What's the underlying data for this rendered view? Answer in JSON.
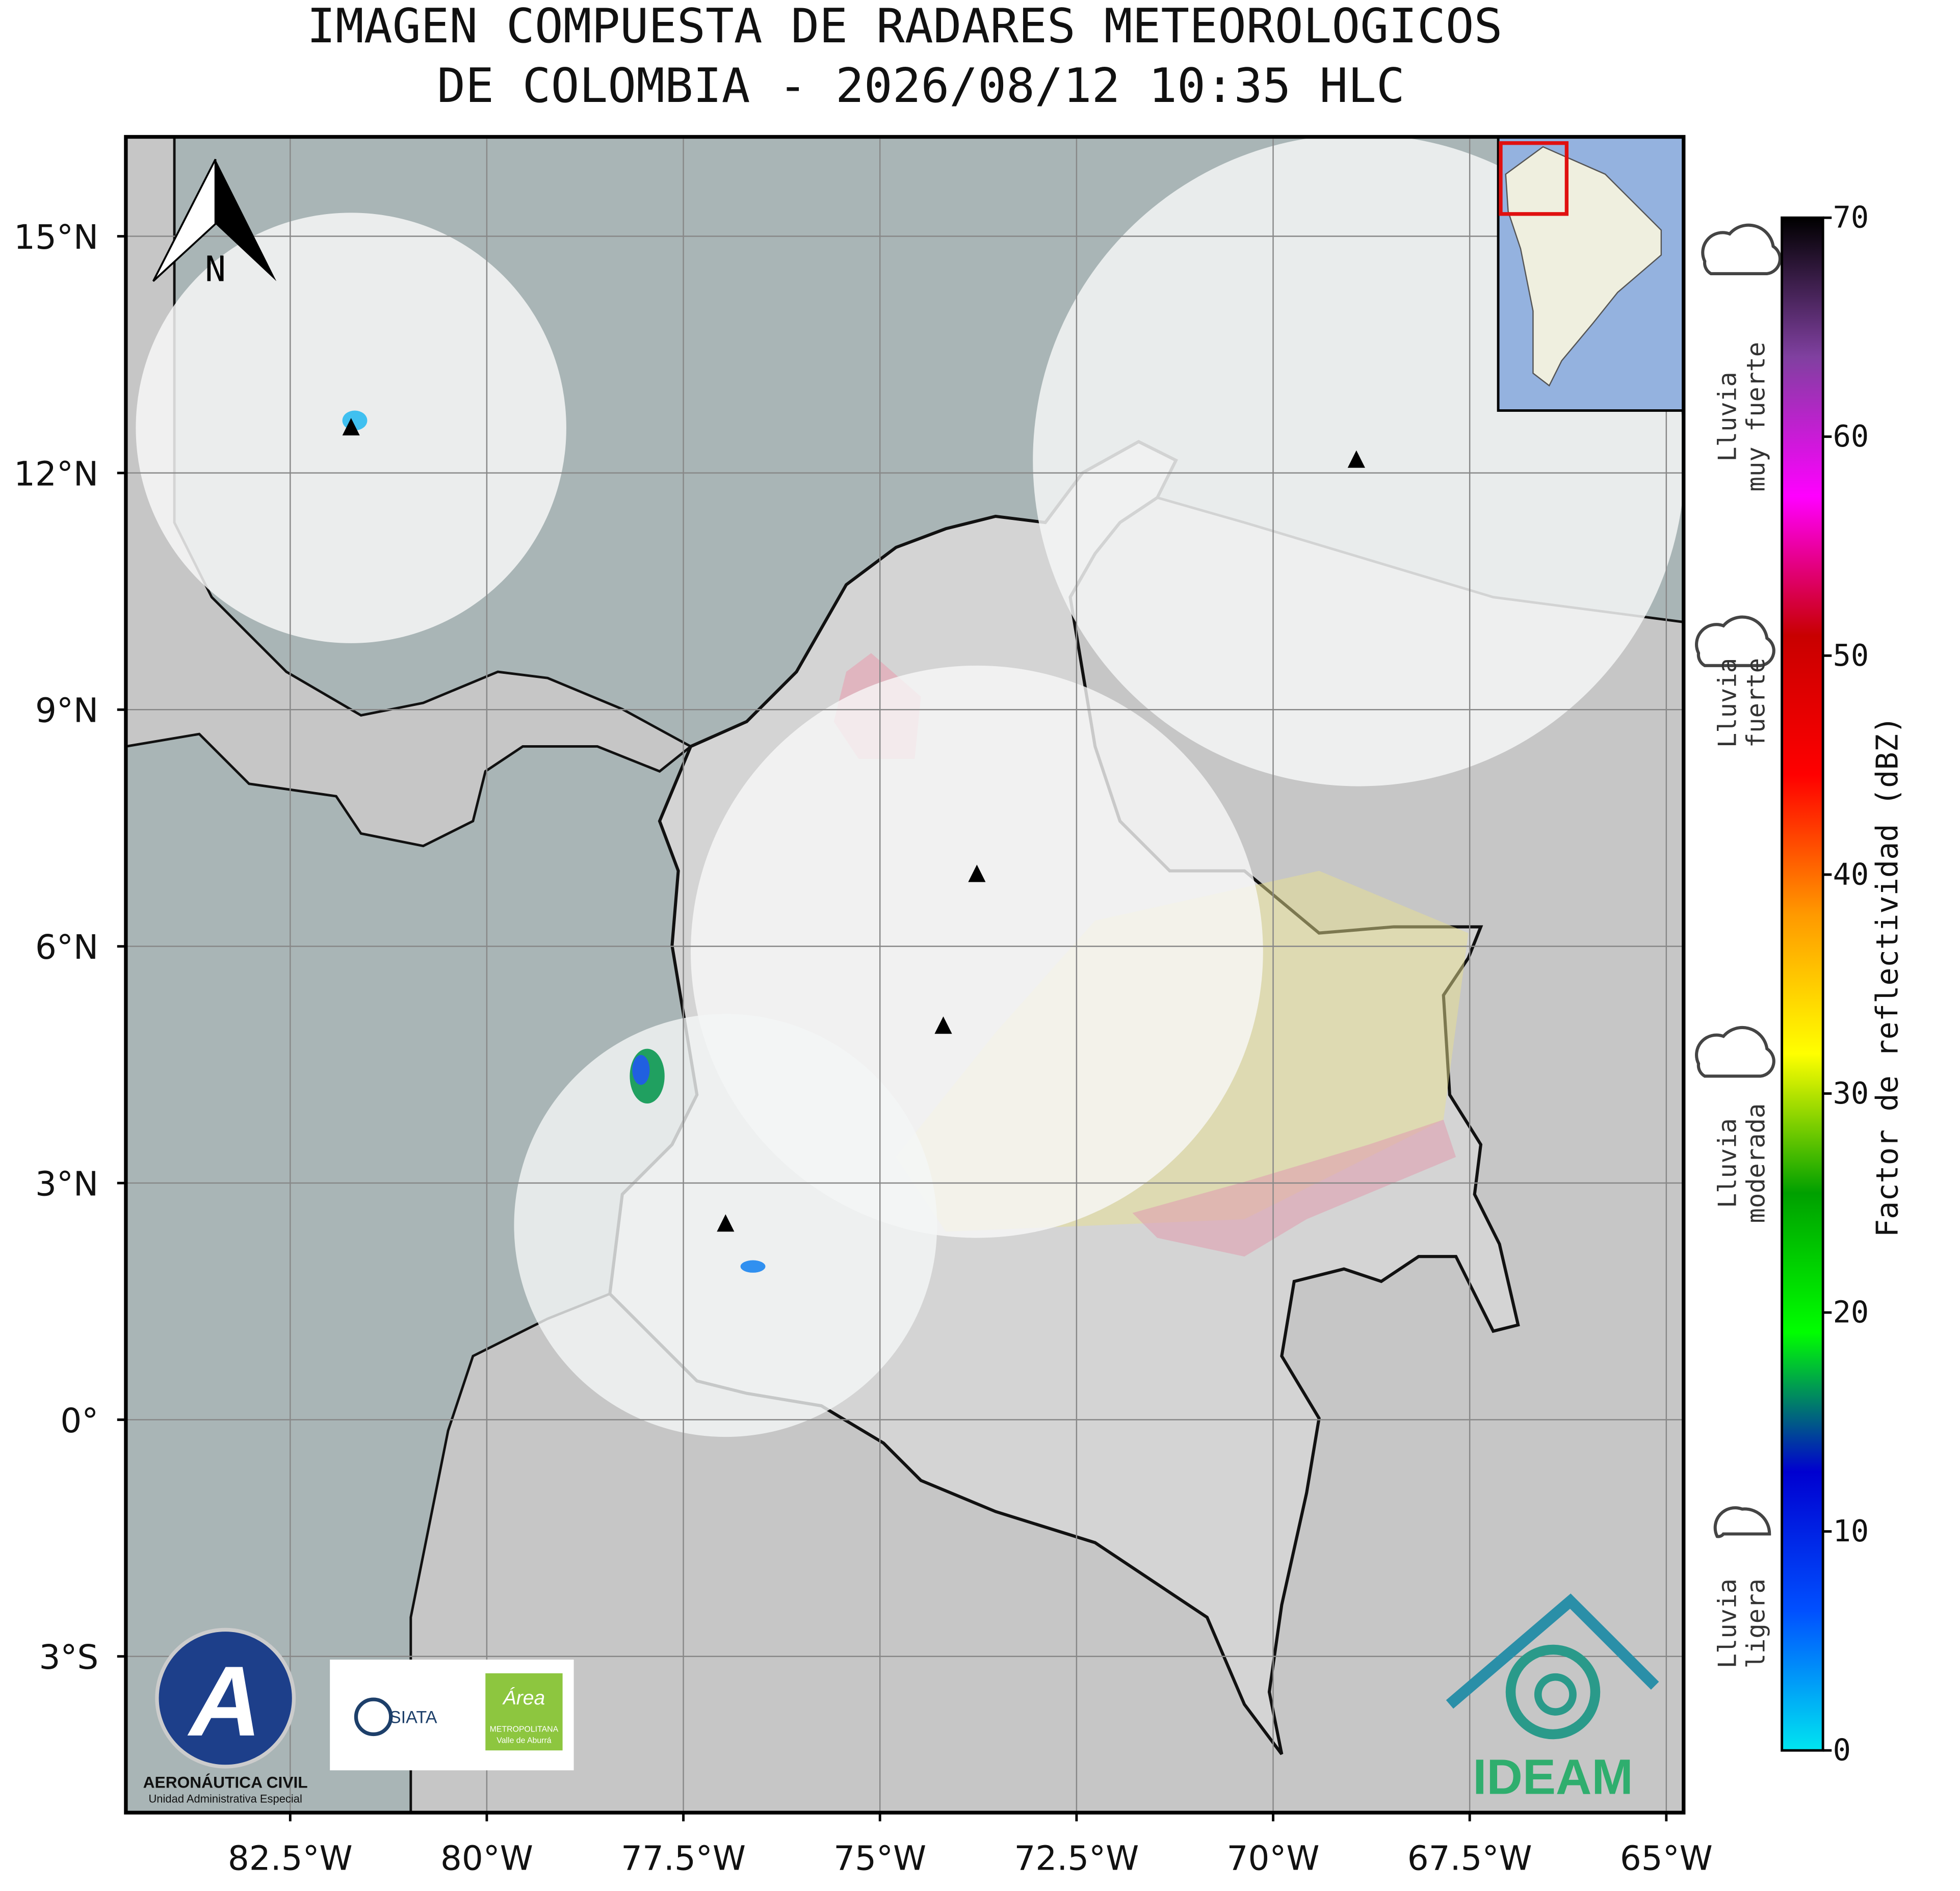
{
  "title": [
    "IMAGEN COMPUESTA DE RADARES METEOROLOGICOS",
    "DE COLOMBIA - 2026/08/12 10:35 HLC"
  ],
  "map": {
    "xlim": [
      -84.59,
      -64.78
    ],
    "ylim": [
      -4.98,
      16.26
    ],
    "xticks": [
      {
        "value": -82.5,
        "label": "82.5°W"
      },
      {
        "value": -80,
        "label": "80°W"
      },
      {
        "value": -77.5,
        "label": "77.5°W"
      },
      {
        "value": -75,
        "label": "75°W"
      },
      {
        "value": -72.5,
        "label": "72.5°W"
      },
      {
        "value": -70,
        "label": "70°W"
      },
      {
        "value": -67.5,
        "label": "67.5°W"
      },
      {
        "value": -65,
        "label": "65°W"
      }
    ],
    "yticks": [
      {
        "value": -3,
        "label": "3°S"
      },
      {
        "value": 0,
        "label": "0°"
      },
      {
        "value": 3,
        "label": "3°N"
      },
      {
        "value": 6,
        "label": "6°N"
      },
      {
        "value": 9,
        "label": "9°N"
      },
      {
        "value": 12,
        "label": "12°N"
      },
      {
        "value": 15,
        "label": "15°N"
      }
    ],
    "grid": true,
    "north_label": "N"
  },
  "colorbar": {
    "label": "Factor de reflectividad (dBZ)",
    "lim": [
      0,
      70
    ],
    "ticks": [
      0,
      10,
      20,
      30,
      40,
      50,
      60,
      70
    ],
    "colors": [
      "#00e5f0",
      "#0050ff",
      "#0000d0",
      "#00ff00",
      "#00a000",
      "#ffff00",
      "#ff9900",
      "#ff0000",
      "#c80000",
      "#ff00ff",
      "#8040a0",
      "#000000"
    ]
  },
  "rain_categories": [
    [
      "Lluvia",
      "muy fuerte"
    ],
    [
      "Lluvia",
      "fuerte"
    ],
    [
      "Lluvia",
      "moderada"
    ],
    [
      "Lluvia",
      "ligera"
    ]
  ],
  "logos": {
    "aerocivil": [
      "AERONÁUTICA CIVIL",
      "Unidad Administrativa Especial"
    ],
    "siata": "SIATA",
    "area": [
      "Área",
      "METROPOLITANA",
      "Valle de Aburrá"
    ],
    "ideam": "IDEAM"
  }
}
